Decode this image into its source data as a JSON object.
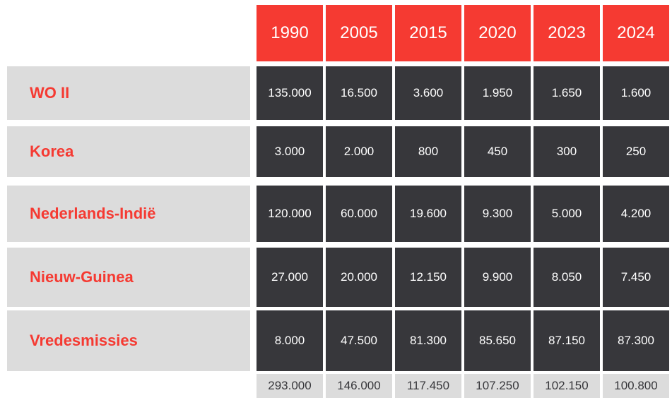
{
  "chart_data": {
    "type": "table",
    "columns": [
      "1990",
      "2005",
      "2015",
      "2020",
      "2023",
      "2024"
    ],
    "rows": [
      {
        "label": "WO II",
        "values": [
          "135.000",
          "16.500",
          "3.600",
          "1.950",
          "1.650",
          "1.600"
        ]
      },
      {
        "label": "Korea",
        "values": [
          "3.000",
          "2.000",
          "800",
          "450",
          "300",
          "250"
        ]
      },
      {
        "label": "Nederlands-Indië",
        "values": [
          "120.000",
          "60.000",
          "19.600",
          "9.300",
          "5.000",
          "4.200"
        ]
      },
      {
        "label": "Nieuw-Guinea",
        "values": [
          "27.000",
          "20.000",
          "12.150",
          "9.900",
          "8.050",
          "7.450"
        ]
      },
      {
        "label": "Vredesmissies",
        "values": [
          "8.000",
          "47.500",
          "81.300",
          "85.650",
          "87.150",
          "87.300"
        ]
      }
    ],
    "totals": [
      "293.000",
      "146.000",
      "117.450",
      "107.250",
      "102.150",
      "100.800"
    ]
  },
  "colors": {
    "accent": "#f53a32",
    "dark_cell": "#37373b",
    "light_cell": "#dcdcdc",
    "header_text": "#ffffff"
  }
}
